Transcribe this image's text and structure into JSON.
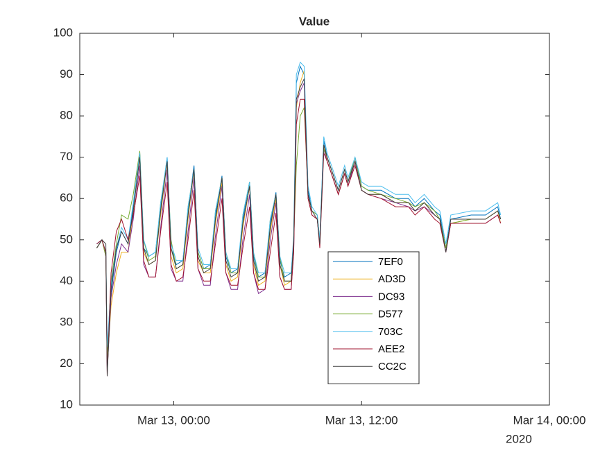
{
  "chart_data": {
    "type": "line",
    "title": "Value",
    "x": [
      "2020-03-12T19:05",
      "2020-03-12T19:25",
      "2020-03-12T19:40",
      "2020-03-12T19:45",
      "2020-03-12T20:00",
      "2020-03-12T20:20",
      "2020-03-12T20:40",
      "2020-03-12T21:05",
      "2020-03-12T21:25",
      "2020-03-12T21:50",
      "2020-03-12T22:05",
      "2020-03-12T22:25",
      "2020-03-12T22:50",
      "2020-03-12T23:10",
      "2020-03-12T23:35",
      "2020-03-12T23:50",
      "2020-03-13T00:10",
      "2020-03-13T00:35",
      "2020-03-13T00:55",
      "2020-03-13T01:18",
      "2020-03-13T01:33",
      "2020-03-13T01:55",
      "2020-03-13T02:20",
      "2020-03-13T02:40",
      "2020-03-13T03:05",
      "2020-03-13T03:20",
      "2020-03-13T03:40",
      "2020-03-13T04:05",
      "2020-03-13T04:25",
      "2020-03-13T04:51",
      "2020-03-13T05:06",
      "2020-03-13T05:25",
      "2020-03-13T05:50",
      "2020-03-13T06:10",
      "2020-03-13T06:32",
      "2020-03-13T06:47",
      "2020-03-13T07:05",
      "2020-03-13T07:30",
      "2020-03-13T07:40",
      "2020-03-13T07:50",
      "2020-03-13T08:05",
      "2020-03-13T08:20",
      "2020-03-13T08:35",
      "2020-03-13T08:50",
      "2020-03-13T09:10",
      "2020-03-13T09:20",
      "2020-03-13T09:35",
      "2020-03-13T09:48",
      "2020-03-13T10:10",
      "2020-03-13T10:31",
      "2020-03-13T10:55",
      "2020-03-13T11:08",
      "2020-03-13T11:35",
      "2020-03-13T12:00",
      "2020-03-13T12:25",
      "2020-03-13T13:15",
      "2020-03-13T14:10",
      "2020-03-13T15:00",
      "2020-03-13T15:25",
      "2020-03-13T16:00",
      "2020-03-13T16:40",
      "2020-03-13T17:00",
      "2020-03-13T17:23",
      "2020-03-13T17:42",
      "2020-03-13T19:00",
      "2020-03-13T19:55",
      "2020-03-13T20:42",
      "2020-03-13T20:53"
    ],
    "series": [
      {
        "name": "7EF0",
        "color": "#0072BD",
        "values": [
          49,
          50,
          47,
          19,
          37,
          47,
          52,
          49,
          58,
          71,
          48,
          46,
          47,
          58,
          70,
          48,
          44,
          45,
          57,
          68,
          47,
          43,
          44,
          56,
          65.5,
          46,
          42,
          43,
          55,
          64,
          46,
          41,
          42,
          54,
          61.5,
          45,
          41,
          42,
          50,
          88,
          92,
          90,
          62,
          57,
          56,
          50,
          74,
          70,
          66,
          62,
          67,
          64,
          70,
          63,
          62,
          62,
          60,
          60,
          58,
          60,
          57,
          56,
          48,
          55,
          56,
          56,
          58,
          55
        ]
      },
      {
        "name": "AD3D",
        "color": "#EDB120",
        "values": [
          48,
          50,
          46,
          20,
          34,
          42,
          47,
          47,
          57,
          70,
          47,
          44,
          45,
          56,
          69,
          46,
          42,
          43,
          55,
          67,
          45,
          42,
          42,
          54,
          64,
          44,
          40,
          41,
          53,
          63,
          44,
          39,
          40,
          52,
          60,
          44,
          39,
          40,
          49,
          82,
          88,
          91,
          60,
          56,
          55,
          49,
          73,
          69,
          65,
          61,
          66,
          63,
          69,
          62,
          61,
          61,
          59,
          59,
          57,
          59,
          56,
          55,
          48,
          54,
          55,
          55,
          57,
          54
        ]
      },
      {
        "name": "DC93",
        "color": "#7E2F8E",
        "values": [
          48,
          50,
          46,
          18,
          36,
          44,
          49,
          47,
          55,
          68,
          44,
          41,
          41,
          53,
          67,
          43,
          40,
          40,
          52,
          65,
          43,
          39,
          39,
          51,
          63,
          42,
          38,
          38,
          50,
          61,
          42,
          37,
          38,
          50,
          59,
          41,
          38,
          38,
          47,
          83,
          86,
          88,
          60,
          56,
          55,
          49,
          72,
          69,
          65,
          61,
          66,
          63,
          69,
          62,
          61,
          60,
          59,
          58,
          57,
          58,
          56,
          55,
          47,
          54,
          54,
          54,
          56,
          54
        ]
      },
      {
        "name": "D577",
        "color": "#77AC30",
        "values": [
          48,
          50,
          46,
          22,
          40,
          49,
          56,
          55,
          61,
          71.5,
          50,
          45,
          46,
          59,
          69,
          50,
          43,
          44,
          58,
          67,
          47,
          43,
          43,
          57,
          65,
          47,
          42,
          42,
          56,
          64,
          47,
          41,
          41,
          55,
          61,
          46,
          40,
          40,
          50,
          68,
          80,
          82,
          61,
          57,
          56,
          50,
          72,
          70,
          66,
          62,
          67,
          64,
          70,
          63,
          62,
          61,
          60,
          59,
          58,
          59,
          57,
          55,
          48,
          54,
          55,
          55,
          57,
          55
        ]
      },
      {
        "name": "703C",
        "color": "#4DBEEE",
        "values": [
          49,
          50,
          47,
          24,
          39,
          48,
          53,
          50,
          59,
          71,
          50,
          46,
          47,
          59,
          70,
          49,
          45,
          45,
          58,
          67,
          48,
          44,
          44,
          57,
          65,
          47,
          43,
          43,
          56,
          64,
          47,
          42,
          42,
          55,
          61,
          46,
          42,
          42,
          51,
          90,
          93,
          92,
          63,
          58,
          56,
          50,
          75,
          71,
          67,
          63,
          68,
          65,
          70,
          64,
          63,
          63,
          61,
          61,
          59,
          61,
          58,
          57,
          49,
          56,
          57,
          57,
          59,
          56
        ]
      },
      {
        "name": "AEE2",
        "color": "#A2142F",
        "values": [
          49,
          50,
          47,
          17,
          42,
          52,
          55,
          50,
          56,
          65.5,
          45,
          41,
          41,
          52,
          64,
          44,
          40,
          41,
          50,
          62,
          43,
          40,
          40,
          49,
          60,
          42,
          39,
          39,
          48,
          58,
          42,
          38,
          38,
          47,
          56.5,
          41,
          38,
          38,
          47,
          78,
          84,
          84,
          60,
          56,
          55,
          48,
          71,
          69,
          65,
          61,
          66,
          63,
          68,
          62,
          61,
          60,
          58,
          58,
          56,
          58,
          55,
          54,
          47,
          54,
          54,
          54,
          56,
          54
        ]
      },
      {
        "name": "CC2C",
        "color": "#404040",
        "values": [
          48,
          50,
          49,
          17,
          38,
          48,
          52,
          49,
          57,
          70,
          48,
          44,
          45,
          57,
          69,
          48,
          43,
          44,
          56,
          67,
          46,
          42,
          43,
          55,
          65,
          45,
          41,
          42,
          54,
          63,
          45,
          40,
          41,
          53,
          61,
          44,
          40,
          40,
          50,
          84,
          87,
          89,
          61,
          57,
          55,
          49,
          73,
          70,
          66,
          62,
          67,
          64,
          69,
          62,
          61,
          61,
          59,
          59,
          57,
          59,
          56,
          55,
          47,
          55,
          55,
          55,
          57,
          55
        ]
      }
    ],
    "xlim": [
      "2020-03-12T18:00",
      "2020-03-14T00:00"
    ],
    "xticks": [
      {
        "value": "2020-03-13T00:00",
        "label": "Mar 13, 00:00"
      },
      {
        "value": "2020-03-13T12:00",
        "label": "Mar 13, 12:00"
      },
      {
        "value": "2020-03-14T00:00",
        "label": "Mar 14, 00:00"
      }
    ],
    "x_year_label": "2020",
    "ylim": [
      10,
      100
    ],
    "yticks": [
      10,
      20,
      30,
      40,
      50,
      60,
      70,
      80,
      90,
      100
    ],
    "grid": false,
    "legend_location": "south"
  }
}
